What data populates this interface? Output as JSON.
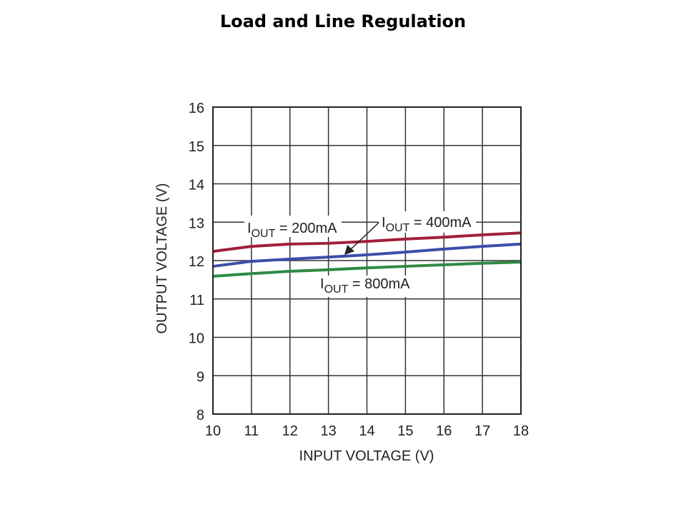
{
  "page_title": "Load and Line Regulation",
  "chart_data": {
    "type": "line",
    "title": "Load and Line Regulation",
    "xlabel": "INPUT VOLTAGE (V)",
    "ylabel": "OUTPUT VOLTAGE (V)",
    "xlim": [
      10,
      18
    ],
    "ylim": [
      8,
      16
    ],
    "grid": true,
    "xticks": [
      "10",
      "11",
      "12",
      "13",
      "14",
      "15",
      "16",
      "17",
      "18"
    ],
    "yticks": [
      "8",
      "9",
      "10",
      "11",
      "12",
      "13",
      "14",
      "15",
      "16"
    ],
    "x": [
      10,
      11,
      12,
      13,
      14,
      15,
      16,
      17,
      18
    ],
    "series": [
      {
        "name": "IOUT = 200mA",
        "label_main": "I",
        "label_sub": "OUT",
        "label_rest": " = 200mA",
        "color": "#a0203a",
        "values": [
          12.24,
          12.37,
          12.43,
          12.45,
          12.5,
          12.56,
          12.61,
          12.67,
          12.72
        ]
      },
      {
        "name": "IOUT = 400mA",
        "label_main": "I",
        "label_sub": "OUT",
        "label_rest": " = 400mA",
        "color": "#3a4fa8",
        "values": [
          11.85,
          11.98,
          12.04,
          12.09,
          12.15,
          12.22,
          12.3,
          12.37,
          12.43
        ]
      },
      {
        "name": "IOUT = 800mA",
        "label_main": "I",
        "label_sub": "OUT",
        "label_rest": " = 800mA",
        "color": "#2e8a44",
        "values": [
          11.59,
          11.66,
          11.72,
          11.76,
          11.81,
          11.85,
          11.89,
          11.93,
          11.96
        ]
      }
    ]
  }
}
